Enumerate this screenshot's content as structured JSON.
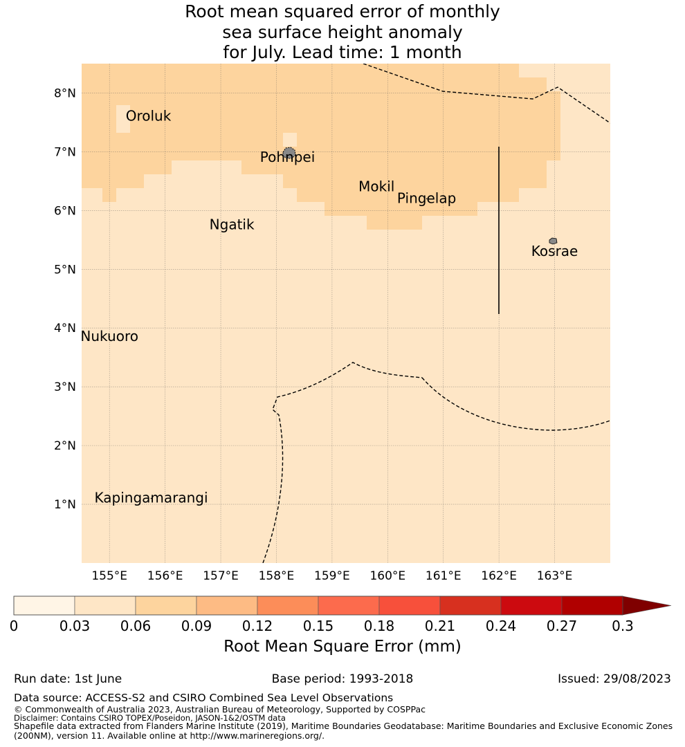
{
  "title": {
    "line1": "Root mean squared error of monthly",
    "line2": "sea surface height anomaly",
    "line3": "for July. Lead time: 1 month"
  },
  "map": {
    "lon_range": [
      154.5,
      164
    ],
    "lat_range": [
      0,
      8.5
    ],
    "lon_ticks": [
      {
        "value": 155,
        "label": "155°E"
      },
      {
        "value": 156,
        "label": "156°E"
      },
      {
        "value": 157,
        "label": "157°E"
      },
      {
        "value": 158,
        "label": "158°E"
      },
      {
        "value": 159,
        "label": "159°E"
      },
      {
        "value": 160,
        "label": "160°E"
      },
      {
        "value": 161,
        "label": "161°E"
      },
      {
        "value": 162,
        "label": "162°E"
      },
      {
        "value": 163,
        "label": "163°E"
      }
    ],
    "lat_ticks": [
      {
        "value": 1,
        "label": "1°N"
      },
      {
        "value": 2,
        "label": "2°N"
      },
      {
        "value": 3,
        "label": "3°N"
      },
      {
        "value": 4,
        "label": "4°N"
      },
      {
        "value": 5,
        "label": "5°N"
      },
      {
        "value": 6,
        "label": "6°N"
      },
      {
        "value": 7,
        "label": "7°N"
      },
      {
        "value": 8,
        "label": "8°N"
      }
    ],
    "islands": [
      {
        "name": "Oroluk",
        "lon": 155.7,
        "lat": 7.6
      },
      {
        "name": "Pohnpei",
        "lon": 158.2,
        "lat": 6.9
      },
      {
        "name": "Mokil",
        "lon": 159.8,
        "lat": 6.4
      },
      {
        "name": "Pingelap",
        "lon": 160.7,
        "lat": 6.2
      },
      {
        "name": "Ngatik",
        "lon": 157.2,
        "lat": 5.75
      },
      {
        "name": "Kosrae",
        "lon": 163.0,
        "lat": 5.3
      },
      {
        "name": "Nukuoro",
        "lon": 155.0,
        "lat": 3.85
      },
      {
        "name": "Kapingamarangi",
        "lon": 155.75,
        "lat": 1.1
      }
    ],
    "colors": {
      "low": "#fee6c6",
      "mid": "#fdd49e",
      "boundary": "#000000",
      "grid": "#555555",
      "land": "#888888"
    }
  },
  "colorbar": {
    "ticks": [
      "0",
      "0.03",
      "0.06",
      "0.09",
      "0.12",
      "0.15",
      "0.18",
      "0.21",
      "0.24",
      "0.27",
      "0.3"
    ],
    "colors": [
      "#fff5e6",
      "#fee6c6",
      "#fdd49e",
      "#fdbb84",
      "#fc8d59",
      "#fc6b4d",
      "#f7503b",
      "#d7301f",
      "#cc0a0f",
      "#b00000"
    ],
    "extend_color": "#7f0000",
    "label": "Root Mean Square Error (mm)"
  },
  "footer": {
    "run_date": "Run date: 1st June",
    "base_period": "Base period: 1993-2018",
    "issued": "Issued: 29/08/2023",
    "data_source": "Data source: ACCESS-S2 and CSIRO Combined Sea Level Observations",
    "copyright": "© Commonwealth of Australia 2023, Australian Bureau of Meteorology, Supported by COSPPac",
    "disclaimer": "Disclaimer: Contains CSIRO TOPEX/Poseidon, JASON-1&2/OSTM data",
    "shapefile_1": "Shapefile data extracted from Flanders Marine Institute (2019), Maritime Boundaries Geodatabase: Maritime Boundaries and Exclusive Economic Zones",
    "shapefile_2": "(200NM), version 11. Available online at http://www.marineregions.org/."
  }
}
